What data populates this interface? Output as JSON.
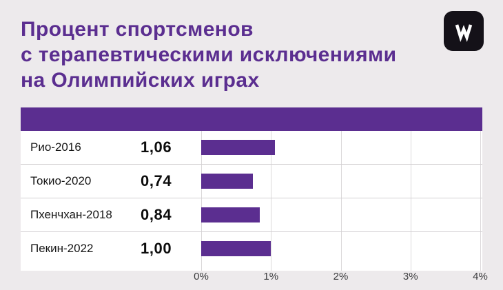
{
  "title": {
    "line1": "Процент спортсменов",
    "line2": "с терапевтическими исключениями",
    "line3": "на Олимпийских играх"
  },
  "logo": {
    "glyph": "W"
  },
  "chart_data": {
    "type": "bar",
    "orientation": "horizontal",
    "title": "Процент спортсменов с терапевтическими исключениями на Олимпийских играх",
    "categories": [
      "Рио-2016",
      "Токио-2020",
      "Пхенчхан-2018",
      "Пекин-2022"
    ],
    "values": [
      1.06,
      0.74,
      0.84,
      1.0
    ],
    "value_labels": [
      "1,06",
      "0,74",
      "0,84",
      "1,00"
    ],
    "unit": "%",
    "x_ticks": [
      "0%",
      "1%",
      "2%",
      "3%",
      "4%"
    ],
    "xlim": [
      0,
      4
    ],
    "grid": true,
    "legend": false,
    "bar_color": "#5b2e90",
    "band_color": "#5b2e90",
    "title_color": "#5b2e90",
    "background_color": "#edeaec"
  }
}
